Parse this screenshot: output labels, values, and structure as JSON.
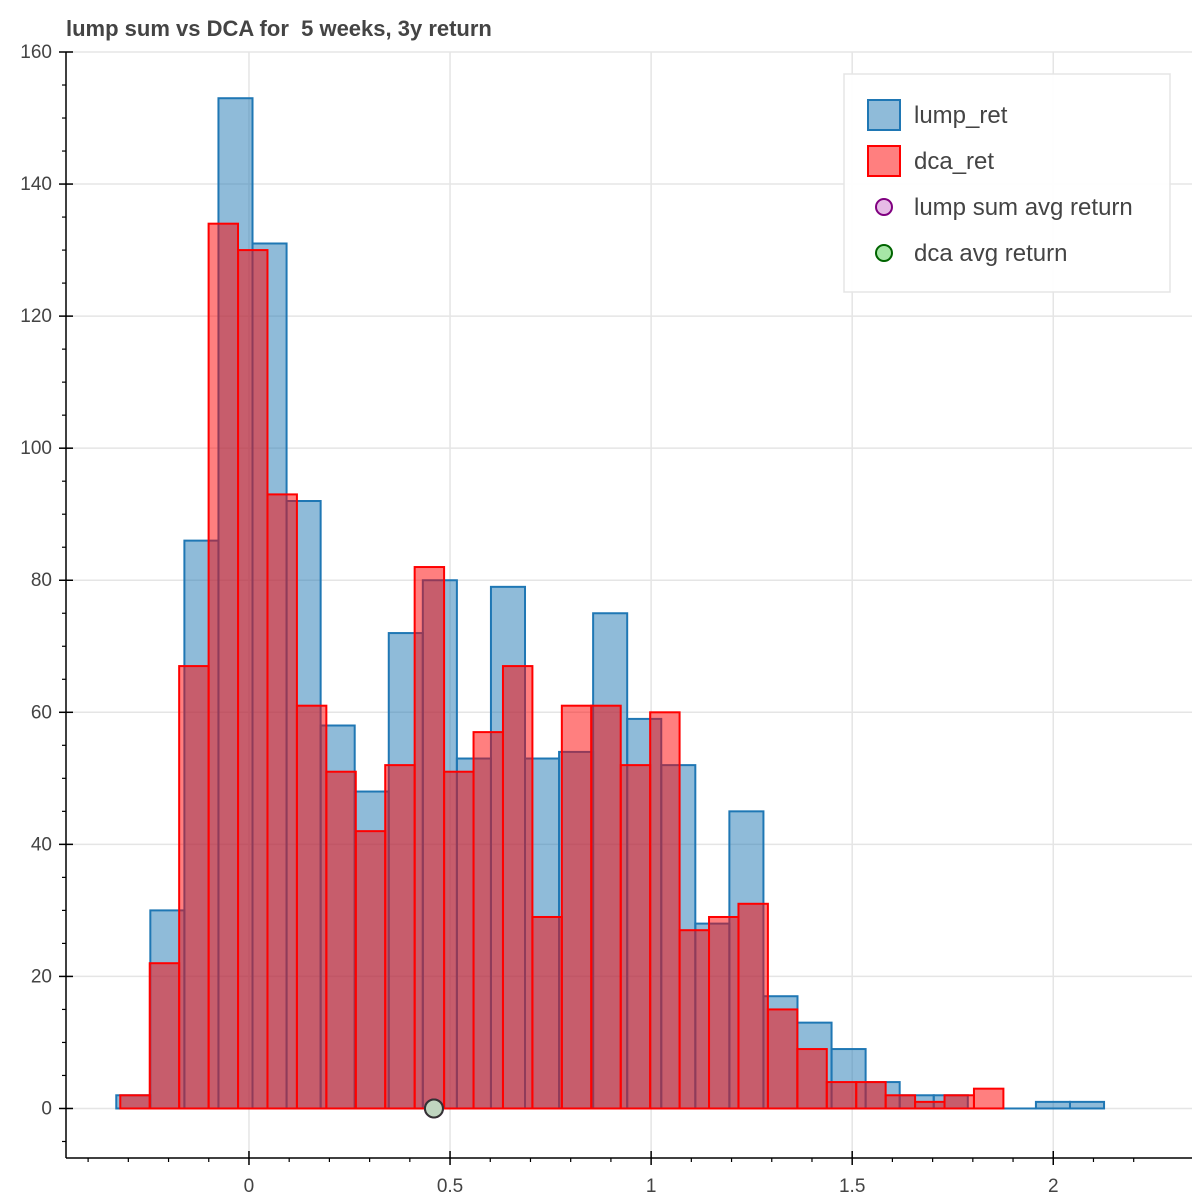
{
  "chart_data": {
    "type": "bar",
    "title": "lump sum vs DCA for  5 weeks, 3y return",
    "xlabel": "",
    "ylabel": "",
    "xlim": [
      -0.455,
      2.345
    ],
    "ylim": [
      -7.5,
      160
    ],
    "x_ticks": [
      0,
      0.5,
      1,
      1.5,
      2
    ],
    "x_tick_labels": [
      "0",
      "0.5",
      "1",
      "1.5",
      "2"
    ],
    "y_ticks": [
      0,
      20,
      40,
      60,
      80,
      100,
      120,
      140,
      160
    ],
    "y_tick_labels": [
      "0",
      "20",
      "40",
      "60",
      "80",
      "100",
      "120",
      "140",
      "160"
    ],
    "grid": true,
    "legend_position": "top-right",
    "colors": {
      "lump_fill": "#1f77b4",
      "lump_line": "#1f77b4",
      "dca_fill": "#ff0000",
      "dca_line": "#ff0000",
      "lump_avg_fill": "#e6bbe6",
      "lump_avg_line": "#800080",
      "dca_avg_fill": "#a6e6a6",
      "dca_avg_line": "#006400"
    },
    "series": [
      {
        "name": "lump_ret",
        "bin_start": -0.33,
        "bin_width": 0.0847,
        "values": [
          2,
          30,
          86,
          153,
          131,
          92,
          58,
          48,
          72,
          80,
          53,
          79,
          53,
          54,
          75,
          59,
          52,
          28,
          45,
          17,
          13,
          9,
          4,
          2,
          2,
          0,
          0,
          1,
          1
        ]
      },
      {
        "name": "dca_ret",
        "bin_start": -0.32,
        "bin_width": 0.0732,
        "values": [
          2,
          22,
          67,
          134,
          130,
          93,
          61,
          51,
          42,
          52,
          82,
          51,
          57,
          67,
          29,
          61,
          61,
          52,
          60,
          27,
          29,
          31,
          15,
          9,
          4,
          4,
          2,
          1,
          2,
          3
        ]
      }
    ],
    "markers": [
      {
        "name": "lump sum avg return",
        "x": 0.46,
        "y": 0
      },
      {
        "name": "dca avg return",
        "x": 0.46,
        "y": 0
      }
    ]
  }
}
